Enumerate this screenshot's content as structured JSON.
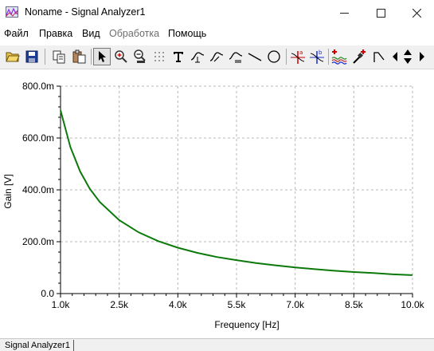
{
  "window": {
    "title": "Noname - Signal Analyzer1",
    "minimize_glyph": "—",
    "maximize_glyph": "☐",
    "close_glyph": "✕"
  },
  "menu": {
    "items": [
      {
        "label": "Файл",
        "enabled": true
      },
      {
        "label": "Правка",
        "enabled": true
      },
      {
        "label": "Вид",
        "enabled": true
      },
      {
        "label": "Обработка",
        "enabled": false
      },
      {
        "label": "Помощь",
        "enabled": true
      }
    ]
  },
  "toolbar": {
    "buttons": [
      {
        "icon": "open-folder-icon"
      },
      {
        "icon": "save-icon"
      },
      {
        "icon": "copy-icon"
      },
      {
        "icon": "paste-icon"
      },
      {
        "icon": "pointer-icon",
        "active": true
      },
      {
        "icon": "zoom-in-icon"
      },
      {
        "icon": "zoom-100-icon"
      },
      {
        "icon": "grid-icon"
      },
      {
        "icon": "text-icon"
      },
      {
        "icon": "graph-tool-icon"
      },
      {
        "icon": "graph-tool-2-icon"
      },
      {
        "icon": "graph-tool-3-icon"
      },
      {
        "icon": "line-icon"
      },
      {
        "icon": "circle-icon"
      },
      {
        "icon": "cursor-a-icon"
      },
      {
        "icon": "cursor-b-icon"
      },
      {
        "icon": "add-curve-icon"
      },
      {
        "icon": "pick-color-icon"
      },
      {
        "icon": "step-icon"
      },
      {
        "icon": "arrow-left-icon"
      },
      {
        "icon": "arrow-up-down-icon"
      },
      {
        "icon": "arrow-right-icon"
      }
    ]
  },
  "colors": {
    "curve": "#0b7a0b",
    "grid": "#b8b8b8",
    "axis": "#000000"
  },
  "chart_data": {
    "type": "line",
    "xlabel": "Frequency [Hz]",
    "ylabel": "Gain [V]",
    "xlim": [
      1000,
      10000
    ],
    "ylim": [
      0,
      0.8
    ],
    "x_ticks": [
      1000,
      2500,
      4000,
      5500,
      7000,
      8500,
      10000
    ],
    "x_tick_labels": [
      "1.0k",
      "2.5k",
      "4.0k",
      "5.5k",
      "7.0k",
      "8.5k",
      "10.0k"
    ],
    "y_ticks": [
      0,
      0.2,
      0.4,
      0.6,
      0.8
    ],
    "y_tick_labels": [
      "0.0",
      "200.0m",
      "400.0m",
      "600.0m",
      "800.0m"
    ],
    "grid": true,
    "series": [
      {
        "x": [
          1000,
          1250,
          1500,
          1750,
          2000,
          2500,
          3000,
          3500,
          4000,
          4500,
          5000,
          5500,
          6000,
          6500,
          7000,
          7500,
          8000,
          8500,
          9000,
          9500,
          10000
        ],
        "y": [
          0.707,
          0.566,
          0.471,
          0.404,
          0.354,
          0.283,
          0.236,
          0.202,
          0.177,
          0.157,
          0.141,
          0.129,
          0.118,
          0.109,
          0.101,
          0.094,
          0.088,
          0.083,
          0.079,
          0.074,
          0.071
        ]
      }
    ]
  },
  "status": {
    "tab_label": "Signal Analyzer1"
  }
}
